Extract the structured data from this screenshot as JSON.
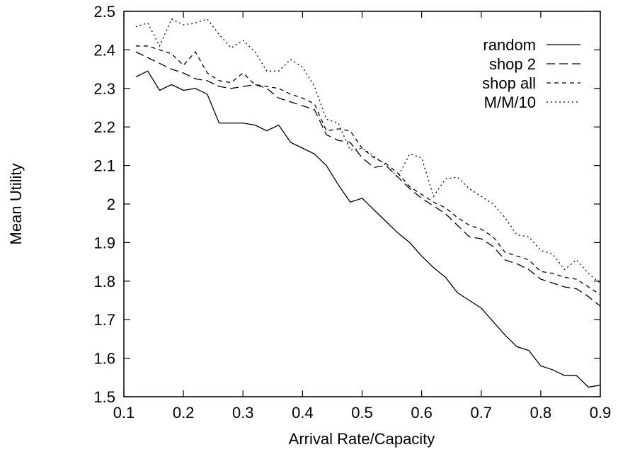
{
  "chart_data": {
    "type": "line",
    "xlabel": "Arrival Rate/Capacity",
    "ylabel": "Mean Utility",
    "xlim": [
      0.1,
      0.9
    ],
    "ylim": [
      1.5,
      2.5
    ],
    "xticks": [
      "0.1",
      "0.2",
      "0.3",
      "0.4",
      "0.5",
      "0.6",
      "0.7",
      "0.8",
      "0.9"
    ],
    "yticks": [
      "1.5",
      "1.6",
      "1.7",
      "1.8",
      "1.9",
      "2",
      "2.1",
      "2.2",
      "2.3",
      "2.4",
      "2.5"
    ],
    "grid": false,
    "legend_position": "top-right",
    "x": [
      0.12,
      0.14,
      0.16,
      0.18,
      0.2,
      0.22,
      0.24,
      0.26,
      0.28,
      0.3,
      0.32,
      0.34,
      0.36,
      0.38,
      0.4,
      0.42,
      0.44,
      0.46,
      0.48,
      0.5,
      0.52,
      0.54,
      0.56,
      0.58,
      0.6,
      0.62,
      0.64,
      0.66,
      0.68,
      0.7,
      0.72,
      0.74,
      0.76,
      0.78,
      0.8,
      0.82,
      0.84,
      0.86,
      0.88,
      0.9
    ],
    "series": [
      {
        "name": "random",
        "dash": "solid",
        "values": [
          2.33,
          2.345,
          2.295,
          2.31,
          2.295,
          2.3,
          2.285,
          2.21,
          2.21,
          2.21,
          2.205,
          2.19,
          2.205,
          2.16,
          2.145,
          2.13,
          2.1,
          2.05,
          2.005,
          2.015,
          1.985,
          1.955,
          1.925,
          1.9,
          1.865,
          1.835,
          1.81,
          1.77,
          1.75,
          1.73,
          1.695,
          1.66,
          1.63,
          1.62,
          1.58,
          1.57,
          1.555,
          1.555,
          1.525,
          1.53
        ]
      },
      {
        "name": "shop 2",
        "dash": "long-dash",
        "values": [
          2.395,
          2.38,
          2.365,
          2.35,
          2.34,
          2.325,
          2.32,
          2.305,
          2.3,
          2.305,
          2.31,
          2.3,
          2.275,
          2.265,
          2.255,
          2.245,
          2.18,
          2.165,
          2.16,
          2.12,
          2.095,
          2.1,
          2.07,
          2.04,
          2.015,
          1.995,
          1.975,
          1.945,
          1.915,
          1.91,
          1.89,
          1.855,
          1.845,
          1.83,
          1.805,
          1.795,
          1.785,
          1.78,
          1.76,
          1.735
        ]
      },
      {
        "name": "shop all",
        "dash": "short-dash",
        "values": [
          2.41,
          2.41,
          2.4,
          2.39,
          2.36,
          2.395,
          2.34,
          2.32,
          2.315,
          2.34,
          2.31,
          2.305,
          2.3,
          2.285,
          2.275,
          2.26,
          2.19,
          2.195,
          2.19,
          2.145,
          2.12,
          2.105,
          2.08,
          2.045,
          2.025,
          2.005,
          1.99,
          1.965,
          1.945,
          1.935,
          1.915,
          1.875,
          1.865,
          1.855,
          1.825,
          1.82,
          1.81,
          1.805,
          1.785,
          1.765
        ]
      },
      {
        "name": "M/M/10",
        "dash": "dotted",
        "values": [
          2.46,
          2.47,
          2.41,
          2.48,
          2.465,
          2.47,
          2.48,
          2.44,
          2.405,
          2.425,
          2.395,
          2.345,
          2.345,
          2.375,
          2.355,
          2.305,
          2.22,
          2.21,
          2.14,
          2.145,
          2.125,
          2.1,
          2.07,
          2.13,
          2.12,
          2.02,
          2.065,
          2.07,
          2.04,
          2.02,
          2.0,
          1.965,
          1.92,
          1.915,
          1.88,
          1.87,
          1.83,
          1.855,
          1.82,
          1.795
        ]
      }
    ]
  }
}
